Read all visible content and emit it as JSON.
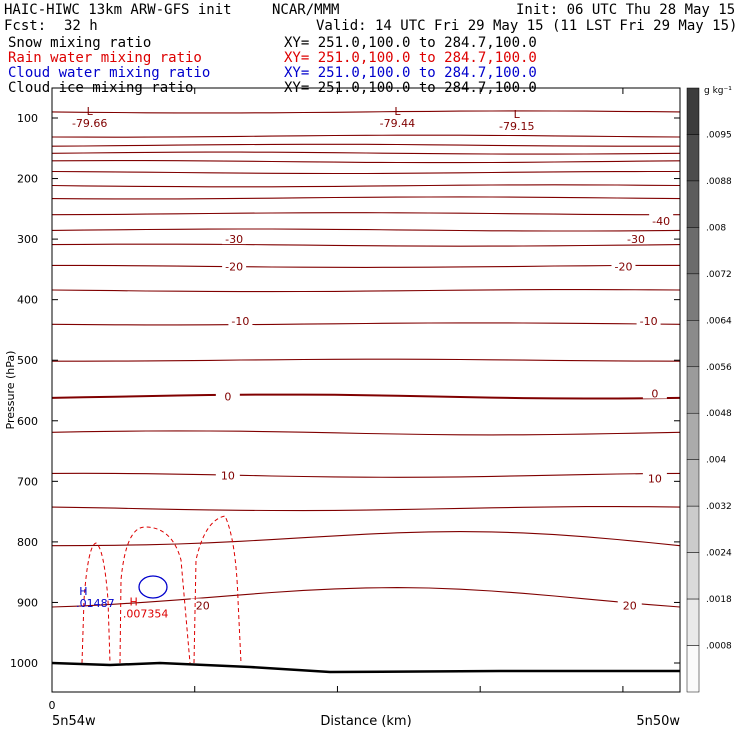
{
  "header": {
    "title_left": "HAIC-HIWC 13km ARW-GFS init",
    "title_mid": "NCAR/MMM",
    "init": "Init: 06 UTC Thu 28 May 15",
    "fcst_label": "Fcst:",
    "fcst_value": "32 h",
    "valid": "Valid: 14 UTC Fri 29 May 15 (11 LST Fri 29 May 15)"
  },
  "legend": [
    {
      "name": "Snow mixing ratio",
      "xy": "XY= 251.0,100.0 to 284.7,100.0",
      "color": "#000000"
    },
    {
      "name": "Rain water mixing ratio",
      "xy": "XY= 251.0,100.0 to 284.7,100.0",
      "color": "#dd0000"
    },
    {
      "name": "Cloud water mixing ratio",
      "xy": "XY= 251.0,100.0 to 284.7,100.0",
      "color": "#0000cc"
    },
    {
      "name": "Cloud ice mixing ratio",
      "xy": "XY= 251.0,100.0 to 284.7,100.0",
      "color": "#000000"
    }
  ],
  "chart_data": {
    "type": "line",
    "ylabel": "Pressure (hPa)",
    "xlabel": "Distance (km)",
    "x_start_label": "5n54w",
    "x_end_label": "5n50w",
    "x_zero_label": "0",
    "yticks": [
      100,
      200,
      300,
      400,
      500,
      600,
      700,
      800,
      900,
      1000
    ],
    "ylim": [
      70,
      1050
    ],
    "xlim": [
      0,
      1
    ],
    "temperature_labels": [
      {
        "text": "-40",
        "x": 0.97,
        "p": 270
      },
      {
        "text": "-30",
        "x": 0.29,
        "p": 300
      },
      {
        "text": "-30",
        "x": 0.93,
        "p": 300
      },
      {
        "text": "-20",
        "x": 0.29,
        "p": 345
      },
      {
        "text": "-20",
        "x": 0.91,
        "p": 345
      },
      {
        "text": "-10",
        "x": 0.3,
        "p": 435
      },
      {
        "text": "-10",
        "x": 0.95,
        "p": 435
      },
      {
        "text": "0",
        "x": 0.28,
        "p": 560
      },
      {
        "text": "0",
        "x": 0.96,
        "p": 555
      },
      {
        "text": "10",
        "x": 0.28,
        "p": 690
      },
      {
        "text": "10",
        "x": 0.96,
        "p": 695
      },
      {
        "text": "20",
        "x": 0.24,
        "p": 905
      },
      {
        "text": "20",
        "x": 0.92,
        "p": 905
      }
    ],
    "low_markers": [
      {
        "symbol": "L",
        "value": "-79.66",
        "x": 0.06,
        "p": 95
      },
      {
        "symbol": "L",
        "value": "-79.44",
        "x": 0.55,
        "p": 95
      },
      {
        "symbol": "L",
        "value": "-79.15",
        "x": 0.74,
        "p": 100
      }
    ],
    "high_markers": [
      {
        "symbol": "H",
        "value": ".01487",
        "x": 0.05,
        "p": 888,
        "color": "#0000cc"
      },
      {
        "symbol": "H",
        "value": ".007354",
        "x": 0.13,
        "p": 905,
        "color": "#dd0000"
      }
    ],
    "isotherm_pressures": [
      90,
      130,
      145,
      158,
      172,
      190,
      212,
      232,
      258,
      285,
      310,
      345,
      385,
      440,
      500,
      560,
      620,
      690,
      745,
      805,
      900,
      1000
    ],
    "colorbar": {
      "unit": "g kg⁻¹",
      "labels": [
        ".0095",
        ".0088",
        ".008",
        ".0072",
        ".0064",
        ".0056",
        ".0048",
        ".004",
        ".0032",
        ".0024",
        ".0018",
        ".0008"
      ]
    }
  }
}
